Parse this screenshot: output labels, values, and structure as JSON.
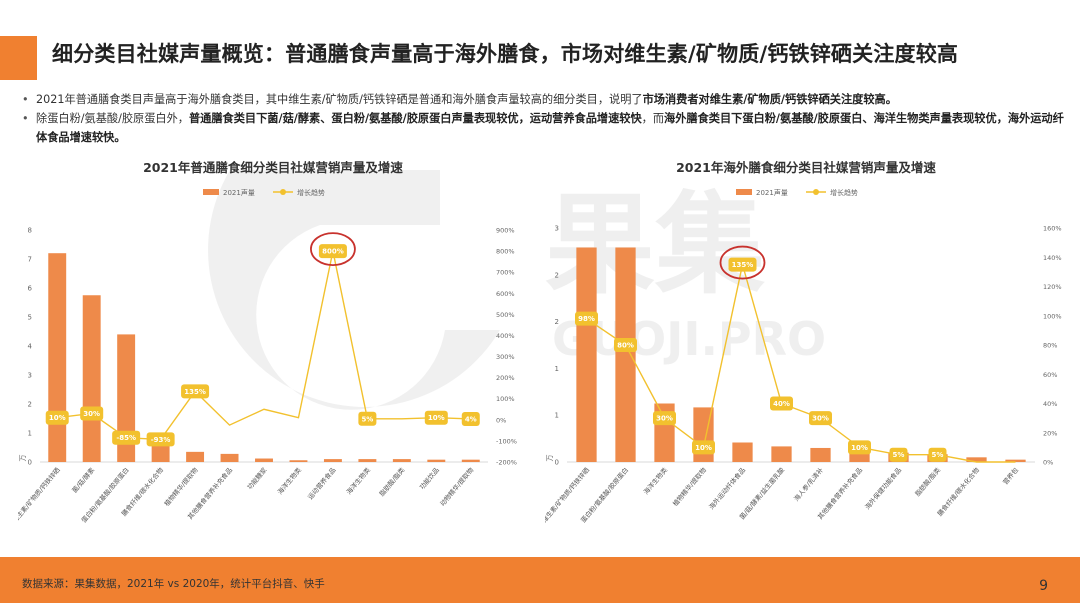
{
  "header": {
    "title": "细分类目社媒声量概览：普通膳食声量高于海外膳食，市场对维生素/矿物质/钙铁锌硒关注度较高"
  },
  "bullets": [
    {
      "part1": "2021年普通膳食类目声量高于海外膳食类目，其中维生素/矿物质/钙铁锌硒是普通和海外膳食声量较高的细分类目，说明了",
      "bold1": "市场消费者对维生素/矿物质/钙铁锌硒关注度较高。",
      "part2": "",
      "bold2": "",
      "part3": "",
      "bold3": ""
    },
    {
      "part1": "除蛋白粉/氨基酸/胶原蛋白外，",
      "bold1": "普通膳食类目下菌/菇/酵素、蛋白粉/氨基酸/胶原蛋白声量表现较优，运动营养食品增速较快",
      "part2": "，而",
      "bold2": "海外膳食类目下蛋白粉/氨基酸/胶原蛋白、海洋生物类声量表现较优，海外运动纤体食品增速较快。",
      "part3": "",
      "bold3": ""
    }
  ],
  "watermark": {
    "brand": "果集",
    "domain": "GUOJI.PRO"
  },
  "footer": {
    "source": "数据来源：果集数据，2021年 vs 2020年，统计平台抖音、快手",
    "page": "9"
  },
  "colors": {
    "bar": "#ee8a4a",
    "line": "#f2c12e",
    "accent": "#f08030",
    "circle": "#c8322d"
  },
  "chart_data": [
    {
      "type": "bar",
      "title": "2021年普通膳食细分类目社媒营销声量及增速",
      "legend": [
        "2021声量",
        "增长趋势"
      ],
      "legend_position": "top",
      "ylabel": "万",
      "ylim": [
        0,
        8
      ],
      "yticks": [
        "0",
        "1",
        "2",
        "3",
        "4",
        "5",
        "6",
        "7",
        "8"
      ],
      "y2ticks": [
        "-200%",
        "-100%",
        "0%",
        "100%",
        "200%",
        "300%",
        "400%",
        "500%",
        "600%",
        "700%",
        "800%",
        "900%"
      ],
      "y2lim": [
        -200,
        900
      ],
      "categories": [
        "维生素/矿物质/钙铁锌硒",
        "菌/菇/酵素",
        "蛋白粉/氨基酸/胶原蛋白",
        "膳食纤维/碳水化合物",
        "植物精华/提取物",
        "其他膳食营养补充食品",
        "功能糖浆",
        "海洋生物类",
        "运动营养食品",
        "海洋生物类",
        "脂肪酸/脂类",
        "功能饮品",
        "动物精华/提取物"
      ],
      "series": [
        {
          "name": "2021声量",
          "type": "bar",
          "values": [
            7.2,
            5.75,
            4.4,
            0.65,
            0.35,
            0.28,
            0.12,
            0.06,
            0.1,
            0.1,
            0.1,
            0.08,
            0.08
          ]
        },
        {
          "name": "增长趋势",
          "type": "line",
          "values": [
            10,
            30,
            -85,
            -93,
            135,
            -25,
            50,
            10,
            800,
            5,
            5,
            10,
            4
          ]
        }
      ],
      "data_labels": [
        {
          "index": 0,
          "text": "10%"
        },
        {
          "index": 1,
          "text": "30%"
        },
        {
          "index": 2,
          "text": "-85%"
        },
        {
          "index": 3,
          "text": "-93%"
        },
        {
          "index": 4,
          "text": "135%"
        },
        {
          "index": 8,
          "text": "800%"
        },
        {
          "index": 9,
          "text": "5%"
        },
        {
          "index": 11,
          "text": "10%"
        },
        {
          "index": 12,
          "text": "4%"
        }
      ],
      "highlight_index": 8
    },
    {
      "type": "bar",
      "title": "2021年海外膳食细分类目社媒营销声量及增速",
      "legend": [
        "2021声量",
        "增长趋势"
      ],
      "legend_position": "top",
      "ylabel": "万",
      "ylim": [
        0,
        3
      ],
      "yticks": [
        "0",
        "1",
        "1",
        "2",
        "2",
        "3"
      ],
      "y2ticks": [
        "0%",
        "20%",
        "40%",
        "60%",
        "80%",
        "100%",
        "120%",
        "140%",
        "160%"
      ],
      "y2lim": [
        0,
        160
      ],
      "categories": [
        "维生素/矿物质/钙铁锌硒",
        "蛋白粉/氨基酸/胶原蛋白",
        "海洋生物类",
        "植物精华/提取物",
        "海外运动纤体食品",
        "菌/菇/酵素/益生菌乳酸",
        "海人参/乳清补",
        "其他膳食营养补充食品",
        "海外保健功能食品",
        "脂肪酸/脂类",
        "膳食纤维/碳水化合物",
        "营养包"
      ],
      "series": [
        {
          "name": "2021声量",
          "type": "bar",
          "values": [
            2.75,
            2.75,
            0.75,
            0.7,
            0.25,
            0.2,
            0.18,
            0.15,
            0.12,
            0.1,
            0.06,
            0.03
          ]
        },
        {
          "name": "增长趋势",
          "type": "line",
          "values": [
            98,
            80,
            30,
            10,
            135,
            40,
            30,
            10,
            5,
            5,
            0,
            0
          ]
        }
      ],
      "data_labels": [
        {
          "index": 0,
          "text": "98%"
        },
        {
          "index": 1,
          "text": "80%"
        },
        {
          "index": 2,
          "text": "30%"
        },
        {
          "index": 3,
          "text": "10%"
        },
        {
          "index": 4,
          "text": "135%"
        },
        {
          "index": 5,
          "text": "40%"
        },
        {
          "index": 6,
          "text": "30%"
        },
        {
          "index": 7,
          "text": "10%"
        },
        {
          "index": 8,
          "text": "5%"
        },
        {
          "index": 9,
          "text": "5%"
        }
      ],
      "highlight_index": 4
    }
  ]
}
